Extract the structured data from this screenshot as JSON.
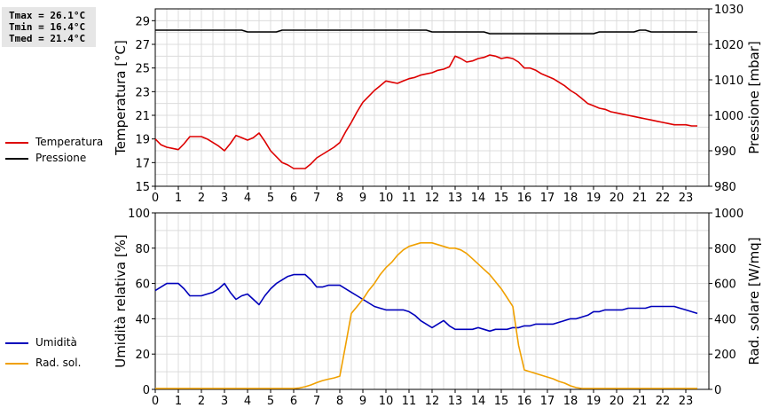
{
  "stats": {
    "tmax": "Tmax = 26.1°C",
    "tmin": "Tmin = 16.4°C",
    "tmed": "Tmed = 21.4°C"
  },
  "legend": {
    "temperature": "Temperatura",
    "pressure": "Pressione",
    "humidity": "Umidità",
    "radiation": "Rad. sol."
  },
  "colors": {
    "temperature": "#dd0000",
    "pressure": "#000000",
    "humidity": "#0000bb",
    "radiation": "#f0a000",
    "grid": "#dcdcdc"
  },
  "chart_data": [
    {
      "type": "line",
      "x": [
        0,
        0.25,
        0.5,
        0.75,
        1.0,
        1.25,
        1.5,
        1.75,
        2.0,
        2.25,
        2.5,
        2.75,
        3.0,
        3.25,
        3.5,
        3.75,
        4.0,
        4.25,
        4.5,
        4.75,
        5.0,
        5.25,
        5.5,
        5.75,
        6.0,
        6.25,
        6.5,
        6.75,
        7.0,
        7.25,
        7.5,
        7.75,
        8.0,
        8.25,
        8.5,
        8.75,
        9.0,
        9.25,
        9.5,
        9.75,
        10.0,
        10.25,
        10.5,
        10.75,
        11.0,
        11.25,
        11.5,
        11.75,
        12.0,
        12.25,
        12.5,
        12.75,
        13.0,
        13.25,
        13.5,
        13.75,
        14.0,
        14.25,
        14.5,
        14.75,
        15.0,
        15.25,
        15.5,
        15.75,
        16.0,
        16.25,
        16.5,
        16.75,
        17.0,
        17.25,
        17.5,
        17.75,
        18.0,
        18.25,
        18.5,
        18.75,
        19.0,
        19.25,
        19.5,
        19.75,
        20.0,
        20.25,
        20.5,
        20.75,
        21.0,
        21.25,
        21.5,
        21.75,
        22.0,
        22.25,
        22.5,
        22.75,
        23.0,
        23.25,
        23.5
      ],
      "xlim": [
        0,
        24
      ],
      "xticks": [
        "0",
        "1",
        "2",
        "3",
        "4",
        "5",
        "6",
        "7",
        "8",
        "9",
        "10",
        "11",
        "12",
        "13",
        "14",
        "15",
        "16",
        "17",
        "18",
        "19",
        "20",
        "21",
        "22",
        "23"
      ],
      "series": [
        {
          "name": "Temperatura",
          "axis": "left",
          "values": [
            19.0,
            18.5,
            18.3,
            18.2,
            18.1,
            18.6,
            19.2,
            19.2,
            19.2,
            19.0,
            18.7,
            18.4,
            18.0,
            18.6,
            19.3,
            19.1,
            18.9,
            19.1,
            19.5,
            18.8,
            18.0,
            17.5,
            17.0,
            16.8,
            16.5,
            16.5,
            16.5,
            16.9,
            17.4,
            17.7,
            18.0,
            18.3,
            18.7,
            19.6,
            20.4,
            21.3,
            22.1,
            22.6,
            23.1,
            23.5,
            23.9,
            23.8,
            23.7,
            23.9,
            24.1,
            24.2,
            24.4,
            24.5,
            24.6,
            24.8,
            24.9,
            25.1,
            26.0,
            25.8,
            25.5,
            25.6,
            25.8,
            25.9,
            26.1,
            26.0,
            25.8,
            25.9,
            25.8,
            25.5,
            25.0,
            25.0,
            24.8,
            24.5,
            24.3,
            24.1,
            23.8,
            23.5,
            23.1,
            22.8,
            22.4,
            22.0,
            21.8,
            21.6,
            21.5,
            21.3,
            21.2,
            21.1,
            21.0,
            20.9,
            20.8,
            20.7,
            20.6,
            20.5,
            20.4,
            20.3,
            20.2,
            20.2,
            20.2,
            20.1,
            20.1
          ]
        },
        {
          "name": "Pressione",
          "axis": "right",
          "values": [
            1024,
            1024,
            1024,
            1024,
            1024,
            1024,
            1024,
            1024,
            1024,
            1024,
            1024,
            1024,
            1024,
            1024,
            1024,
            1024,
            1023.5,
            1023.5,
            1023.5,
            1023.5,
            1023.5,
            1023.5,
            1024,
            1024,
            1024,
            1024,
            1024,
            1024,
            1024,
            1024,
            1024,
            1024,
            1024,
            1024,
            1024,
            1024,
            1024,
            1024,
            1024,
            1024,
            1024,
            1024,
            1024,
            1024,
            1024,
            1024,
            1024,
            1024,
            1023.5,
            1023.5,
            1023.5,
            1023.5,
            1023.5,
            1023.5,
            1023.5,
            1023.5,
            1023.5,
            1023.5,
            1023,
            1023,
            1023,
            1023,
            1023,
            1023,
            1023,
            1023,
            1023,
            1023,
            1023,
            1023,
            1023,
            1023,
            1023,
            1023,
            1023,
            1023,
            1023,
            1023.5,
            1023.5,
            1023.5,
            1023.5,
            1023.5,
            1023.5,
            1023.5,
            1024,
            1024,
            1023.5,
            1023.5,
            1023.5,
            1023.5,
            1023.5,
            1023.5,
            1023.5,
            1023.5,
            1023.5
          ]
        }
      ],
      "y_left": {
        "label": "Temperatura [°C]",
        "lim": [
          15,
          30
        ],
        "ticks": [
          15,
          17,
          19,
          21,
          23,
          25,
          27,
          29
        ]
      },
      "y_right": {
        "label": "Pressione [mbar]",
        "lim": [
          980,
          1030
        ],
        "ticks": [
          980,
          990,
          1000,
          1010,
          1020,
          1030
        ]
      },
      "grid": true
    },
    {
      "type": "line",
      "x": [
        0,
        0.25,
        0.5,
        0.75,
        1.0,
        1.25,
        1.5,
        1.75,
        2.0,
        2.25,
        2.5,
        2.75,
        3.0,
        3.25,
        3.5,
        3.75,
        4.0,
        4.25,
        4.5,
        4.75,
        5.0,
        5.25,
        5.5,
        5.75,
        6.0,
        6.25,
        6.5,
        6.75,
        7.0,
        7.25,
        7.5,
        7.75,
        8.0,
        8.25,
        8.5,
        8.75,
        9.0,
        9.25,
        9.5,
        9.75,
        10.0,
        10.25,
        10.5,
        10.75,
        11.0,
        11.25,
        11.5,
        11.75,
        12.0,
        12.25,
        12.5,
        12.75,
        13.0,
        13.25,
        13.5,
        13.75,
        14.0,
        14.25,
        14.5,
        14.75,
        15.0,
        15.25,
        15.5,
        15.75,
        16.0,
        16.25,
        16.5,
        16.75,
        17.0,
        17.25,
        17.5,
        17.75,
        18.0,
        18.25,
        18.5,
        18.75,
        19.0,
        19.25,
        19.5,
        19.75,
        20.0,
        20.25,
        20.5,
        20.75,
        21.0,
        21.25,
        21.5,
        21.75,
        22.0,
        22.25,
        22.5,
        22.75,
        23.0,
        23.25,
        23.5
      ],
      "xlim": [
        0,
        24
      ],
      "xticks": [
        "0",
        "1",
        "2",
        "3",
        "4",
        "5",
        "6",
        "7",
        "8",
        "9",
        "10",
        "11",
        "12",
        "13",
        "14",
        "15",
        "16",
        "17",
        "18",
        "19",
        "20",
        "21",
        "22",
        "23"
      ],
      "series": [
        {
          "name": "Umidità",
          "axis": "left",
          "values": [
            56,
            58,
            60,
            60,
            60,
            57,
            53,
            53,
            53,
            54,
            55,
            57,
            60,
            55,
            51,
            53,
            54,
            51,
            48,
            53,
            57,
            60,
            62,
            64,
            65,
            65,
            65,
            62,
            58,
            58,
            59,
            59,
            59,
            57,
            55,
            53,
            51,
            49,
            47,
            46,
            45,
            45,
            45,
            45,
            44,
            42,
            39,
            37,
            35,
            37,
            39,
            36,
            34,
            34,
            34,
            34,
            35,
            34,
            33,
            34,
            34,
            34,
            35,
            35,
            36,
            36,
            37,
            37,
            37,
            37,
            38,
            39,
            40,
            40,
            41,
            42,
            44,
            44,
            45,
            45,
            45,
            45,
            46,
            46,
            46,
            46,
            47,
            47,
            47,
            47,
            47,
            46,
            45,
            44,
            43
          ]
        },
        {
          "name": "Rad. sol.",
          "axis": "right",
          "values": [
            5,
            5,
            5,
            5,
            5,
            5,
            5,
            5,
            5,
            5,
            5,
            5,
            5,
            5,
            5,
            5,
            5,
            5,
            5,
            5,
            5,
            5,
            5,
            5,
            5,
            8,
            15,
            25,
            38,
            50,
            58,
            65,
            75,
            250,
            430,
            470,
            510,
            560,
            600,
            650,
            690,
            720,
            760,
            790,
            810,
            820,
            830,
            830,
            830,
            820,
            810,
            800,
            800,
            790,
            770,
            740,
            710,
            680,
            650,
            610,
            570,
            520,
            470,
            250,
            110,
            100,
            90,
            80,
            70,
            60,
            45,
            35,
            20,
            10,
            5,
            5,
            5,
            5,
            5,
            5,
            5,
            5,
            5,
            5,
            5,
            5,
            5,
            5,
            5,
            5,
            5,
            5,
            5,
            5,
            5
          ]
        }
      ],
      "y_left": {
        "label": "Umidità relativa [%]",
        "lim": [
          0,
          100
        ],
        "ticks": [
          0,
          20,
          40,
          60,
          80,
          100
        ]
      },
      "y_right": {
        "label": "Rad. solare [W/mq]",
        "lim": [
          0,
          1000
        ],
        "ticks": [
          0,
          200,
          400,
          600,
          800,
          1000
        ]
      },
      "grid": true
    }
  ]
}
